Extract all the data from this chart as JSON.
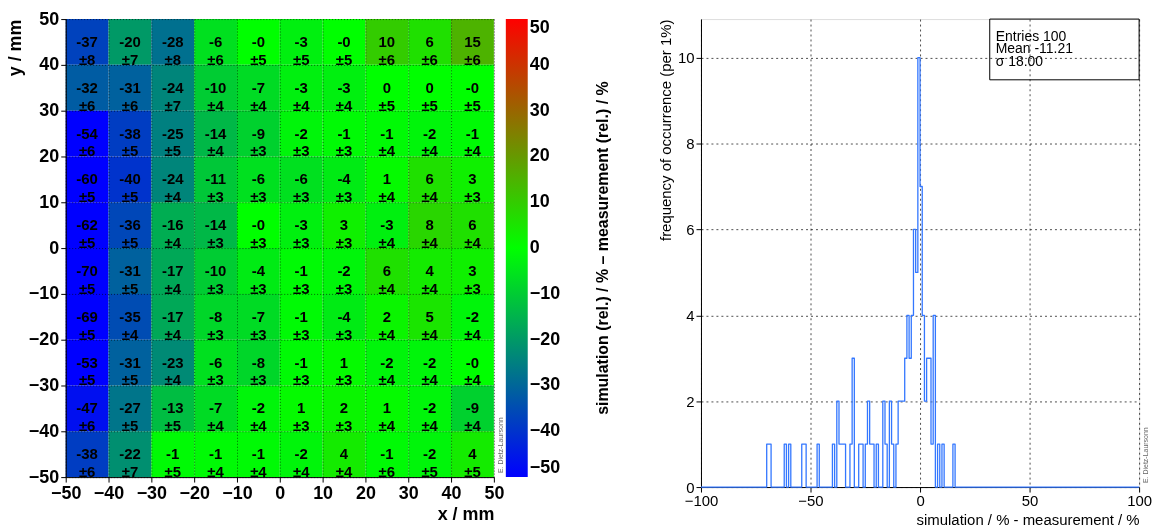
{
  "chart_data": [
    {
      "type": "heatmap",
      "xlabel": "x / mm",
      "ylabel": "y / mm",
      "clabel": "simulation (rel.) / % – measurement (rel.) / %",
      "xlim": [
        -50,
        50
      ],
      "xticks": [
        -50,
        -40,
        -30,
        -20,
        -10,
        0,
        10,
        20,
        30,
        40,
        50
      ],
      "ylim": [
        -50,
        50
      ],
      "yticks": [
        -50,
        -40,
        -30,
        -20,
        -10,
        0,
        10,
        20,
        30,
        40,
        50
      ],
      "clim": [
        -50,
        50
      ],
      "cticks": [
        -50,
        -40,
        -30,
        -20,
        -10,
        0,
        10,
        20,
        30,
        40,
        50
      ],
      "grid": true,
      "cells": [
        [
          -37,
          -20,
          -28,
          -6,
          0,
          -3,
          0,
          10,
          6,
          15
        ],
        [
          -32,
          -31,
          -24,
          -10,
          -7,
          -3,
          -3,
          0,
          0,
          0
        ],
        [
          -54,
          -38,
          -25,
          -14,
          -9,
          -2,
          -1,
          -1,
          -2,
          -1
        ],
        [
          -60,
          -40,
          -24,
          -11,
          -6,
          -6,
          -4,
          1,
          6,
          3
        ],
        [
          -62,
          -36,
          -16,
          -14,
          0,
          -3,
          3,
          -3,
          8,
          6
        ],
        [
          -70,
          -31,
          -17,
          -10,
          -4,
          -1,
          -2,
          6,
          4,
          3
        ],
        [
          -69,
          -35,
          -17,
          -8,
          -7,
          -1,
          -4,
          2,
          5,
          -2
        ],
        [
          -53,
          -31,
          -23,
          -6,
          -8,
          -1,
          1,
          -2,
          -2,
          0
        ],
        [
          -47,
          -27,
          -13,
          -7,
          -2,
          1,
          2,
          1,
          -2,
          -9
        ],
        [
          -38,
          -22,
          -1,
          -1,
          -1,
          -2,
          4,
          -1,
          -2,
          4
        ]
      ],
      "cell_labels": [
        [
          "-37\n±8",
          "-20\n±7",
          "-28\n±8",
          "-6\n±6",
          "-0\n±5",
          "-3\n±5",
          "-0\n±5",
          "10\n±6",
          "6\n±6",
          "15\n±6"
        ],
        [
          "-32\n±6",
          "-31\n±6",
          "-24\n±7",
          "-10\n±4",
          "-7\n±4",
          "-3\n±4",
          "-3\n±4",
          "0\n±5",
          "0\n±5",
          "-0\n±5"
        ],
        [
          "-54\n±6",
          "-38\n±5",
          "-25\n±5",
          "-14\n±4",
          "-9\n±3",
          "-2\n±3",
          "-1\n±3",
          "-1\n±4",
          "-2\n±4",
          "-1\n±4"
        ],
        [
          "-60\n±5",
          "-40\n±5",
          "-24\n±4",
          "-11\n±3",
          "-6\n±3",
          "-6\n±3",
          "-4\n±3",
          "1\n±4",
          "6\n±4",
          "3\n±3"
        ],
        [
          "-62\n±5",
          "-36\n±5",
          "-16\n±4",
          "-14\n±3",
          "-0\n±3",
          "-3\n±3",
          "3\n±3",
          "-3\n±4",
          "8\n±4",
          "6\n±4"
        ],
        [
          "-70\n±5",
          "-31\n±5",
          "-17\n±4",
          "-10\n±3",
          "-4\n±3",
          "-1\n±3",
          "-2\n±3",
          "6\n±4",
          "4\n±4",
          "3\n±3"
        ],
        [
          "-69\n±5",
          "-35\n±4",
          "-17\n±4",
          "-8\n±3",
          "-7\n±3",
          "-1\n±3",
          "-4\n±3",
          "2\n±4",
          "5\n±4",
          "-2\n±4"
        ],
        [
          "-53\n±5",
          "-31\n±5",
          "-23\n±4",
          "-6\n±3",
          "-8\n±3",
          "-1\n±3",
          "1\n±3",
          "-2\n±4",
          "-2\n±4",
          "-0\n±4"
        ],
        [
          "-47\n±6",
          "-27\n±5",
          "-13\n±5",
          "-7\n±4",
          "-2\n±4",
          "1\n±3",
          "2\n±3",
          "1\n±4",
          "-2\n±4",
          "-9\n±4"
        ],
        [
          "-38\n±6",
          "-22\n±7",
          "-1\n±5",
          "-1\n±4",
          "-1\n±4",
          "-2\n±4",
          "4\n±4",
          "-1\n±6",
          "-2\n±5",
          "4\n±5"
        ]
      ],
      "annotations": [
        "E. Dietz-Laursonn"
      ]
    },
    {
      "type": "histogram",
      "xlabel": "simulation / % - measurement / %",
      "ylabel": "frequency of occurrence (per 1%)",
      "color": "#3377ff",
      "xlim": [
        -100,
        100
      ],
      "xticks": [
        -100,
        -50,
        0,
        50,
        100
      ],
      "ylim": [
        0,
        10.9
      ],
      "yticks": [
        0,
        2,
        4,
        6,
        8,
        10
      ],
      "grid": true,
      "bins": [
        -100,
        -99,
        -98,
        -97,
        -96,
        -95,
        -94,
        -93,
        -92,
        -91,
        -90,
        -89,
        -88,
        -87,
        -86,
        -85,
        -84,
        -83,
        -82,
        -81,
        -80,
        -79,
        -78,
        -77,
        -76,
        -75,
        -74,
        -73,
        -72,
        -71,
        -70,
        -69,
        -68,
        -67,
        -66,
        -65,
        -64,
        -63,
        -62,
        -61,
        -60,
        -59,
        -58,
        -57,
        -56,
        -55,
        -54,
        -53,
        -52,
        -51,
        -50,
        -49,
        -48,
        -47,
        -46,
        -45,
        -44,
        -43,
        -42,
        -41,
        -40,
        -39,
        -38,
        -37,
        -36,
        -35,
        -34,
        -33,
        -32,
        -31,
        -30,
        -29,
        -28,
        -27,
        -26,
        -25,
        -24,
        -23,
        -22,
        -21,
        -20,
        -19,
        -18,
        -17,
        -16,
        -15,
        -14,
        -13,
        -12,
        -11,
        -10,
        -9,
        -8,
        -7,
        -6,
        -5,
        -4,
        -3,
        -2,
        -1,
        0,
        1,
        2,
        3,
        4,
        5,
        6,
        7,
        8,
        9,
        10,
        11,
        12,
        13,
        14,
        15,
        16,
        17,
        18,
        19,
        20,
        21,
        22,
        23,
        24,
        25,
        26,
        27,
        28,
        29,
        30,
        31,
        32,
        33,
        34,
        35,
        36,
        37,
        38,
        39,
        40,
        41,
        42,
        43,
        44,
        45,
        46,
        47,
        48,
        49,
        50,
        51,
        52,
        53,
        54,
        55,
        56,
        57,
        58,
        59,
        60,
        61,
        62,
        63,
        64,
        65,
        66,
        67,
        68,
        69,
        70,
        71,
        72,
        73,
        74,
        75,
        76,
        77,
        78,
        79,
        80,
        81,
        82,
        83,
        84,
        85,
        86,
        87,
        88,
        89,
        90,
        91,
        92,
        93,
        94,
        95,
        96,
        97,
        98,
        99,
        100
      ],
      "values": [
        0,
        0,
        0,
        0,
        0,
        0,
        0,
        0,
        0,
        0,
        0,
        0,
        0,
        0,
        0,
        0,
        0,
        0,
        0,
        0,
        0,
        0,
        0,
        0,
        0,
        0,
        0,
        0,
        0,
        0,
        1,
        1,
        0,
        0,
        0,
        0,
        0,
        0,
        1,
        0,
        1,
        0,
        0,
        0,
        0,
        0,
        1,
        1,
        0,
        0,
        0,
        0,
        0,
        1,
        0,
        0,
        0,
        0,
        0,
        0,
        1,
        0,
        2,
        1,
        1,
        1,
        0,
        0,
        1,
        3,
        0,
        0,
        1,
        1,
        0,
        1,
        2,
        1,
        1,
        0,
        1,
        0,
        0,
        2,
        1,
        0,
        2,
        1,
        0,
        1,
        2,
        2,
        2,
        3,
        4,
        3,
        4,
        6,
        5,
        10,
        7,
        4,
        2,
        3,
        3,
        1,
        4,
        0,
        1,
        0,
        1,
        0,
        0,
        0,
        0,
        1,
        0,
        0,
        0,
        0,
        0,
        0,
        0,
        0,
        0,
        0,
        0,
        0,
        0,
        0,
        0,
        0,
        0,
        0,
        0,
        0,
        0,
        0,
        0,
        0,
        0,
        0,
        0,
        0,
        0,
        0,
        0,
        0,
        0,
        0,
        0,
        0,
        0,
        0,
        0,
        0,
        0,
        0,
        0,
        0,
        0,
        0,
        0,
        0,
        0,
        0,
        0,
        0,
        0,
        0,
        0,
        0,
        0,
        0,
        0,
        0,
        0,
        0,
        0,
        0,
        0,
        0,
        0,
        0,
        0,
        0,
        0,
        0,
        0,
        0,
        0,
        0,
        0,
        0,
        0,
        0,
        0,
        0,
        0,
        0
      ],
      "annotations": [
        "Entries  100",
        "Mean  -11.21",
        "σ  18.00",
        "E. Dietz-Laursonn"
      ]
    }
  ]
}
